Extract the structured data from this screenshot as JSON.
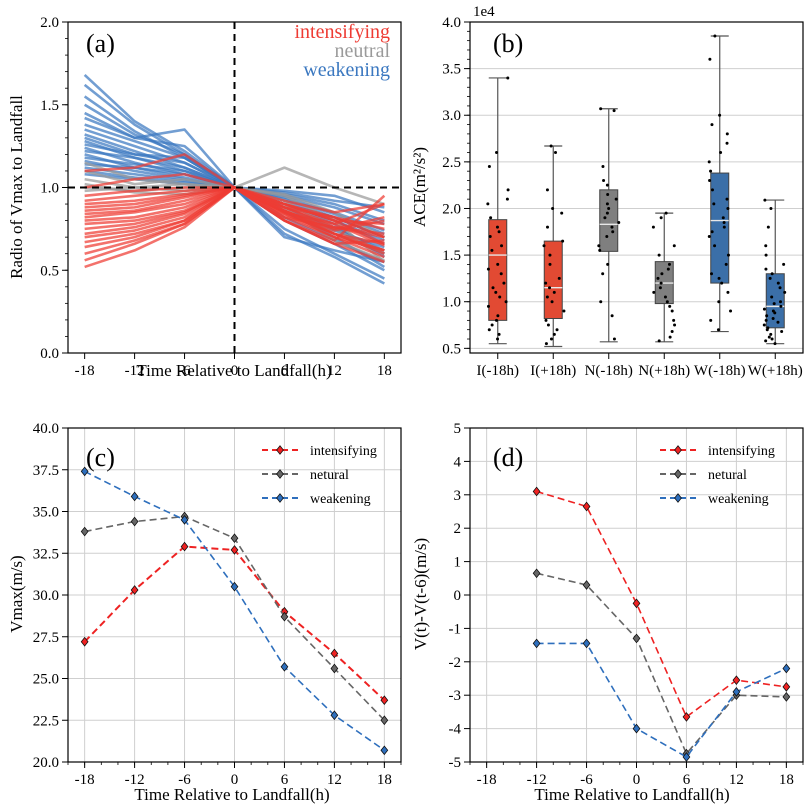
{
  "chart_data": [
    {
      "id": "a",
      "type": "line",
      "panel_label": "(a)",
      "xlabel": "Time Relative to Landfall(h)",
      "ylabel": "Radio of Vmax to Landfall",
      "x": [
        -18,
        -12,
        -6,
        0,
        6,
        12,
        18
      ],
      "xticks": [
        "-18",
        "-12",
        "-6",
        "0",
        "6",
        "12",
        "18"
      ],
      "ylim": [
        0.0,
        2.0
      ],
      "yticks": [
        "0.0",
        "0.5",
        "1.0",
        "1.5",
        "2.0"
      ],
      "reference_lines": {
        "x": 0,
        "y": 1.0
      },
      "legend": [
        {
          "label": "intensifying",
          "color": "#ee3b33"
        },
        {
          "label": "neutral",
          "color": "#9a9a9a"
        },
        {
          "label": "weakening",
          "color": "#3b78c0"
        }
      ],
      "series": [
        {
          "group": "weakening",
          "values": [
            1.68,
            1.4,
            1.22,
            1.0,
            0.72,
            0.58,
            0.42
          ]
        },
        {
          "group": "weakening",
          "values": [
            1.62,
            1.38,
            1.2,
            1.0,
            0.75,
            0.6,
            0.45
          ]
        },
        {
          "group": "weakening",
          "values": [
            1.55,
            1.34,
            1.18,
            1.0,
            0.8,
            0.66,
            0.5
          ]
        },
        {
          "group": "weakening",
          "values": [
            1.5,
            1.32,
            1.2,
            1.0,
            0.7,
            0.62,
            0.55
          ]
        },
        {
          "group": "weakening",
          "values": [
            1.45,
            1.3,
            1.25,
            1.0,
            0.85,
            0.72,
            0.6
          ]
        },
        {
          "group": "weakening",
          "values": [
            1.42,
            1.3,
            1.35,
            1.0,
            0.9,
            0.8,
            0.68
          ]
        },
        {
          "group": "weakening",
          "values": [
            1.38,
            1.28,
            1.18,
            1.0,
            0.88,
            0.75,
            0.62
          ]
        },
        {
          "group": "weakening",
          "values": [
            1.35,
            1.25,
            1.15,
            1.0,
            0.92,
            0.82,
            0.7
          ]
        },
        {
          "group": "weakening",
          "values": [
            1.32,
            1.22,
            1.12,
            1.0,
            0.95,
            0.88,
            0.78
          ]
        },
        {
          "group": "weakening",
          "values": [
            1.3,
            1.2,
            1.18,
            1.0,
            0.9,
            0.78,
            0.58
          ]
        },
        {
          "group": "weakening",
          "values": [
            1.28,
            1.18,
            1.1,
            1.0,
            0.98,
            0.95,
            0.85
          ]
        },
        {
          "group": "weakening",
          "values": [
            1.26,
            1.2,
            1.15,
            1.0,
            0.86,
            0.7,
            0.52
          ]
        },
        {
          "group": "weakening",
          "values": [
            1.24,
            1.15,
            1.08,
            1.0,
            0.94,
            0.85,
            0.74
          ]
        },
        {
          "group": "weakening",
          "values": [
            1.22,
            1.18,
            1.12,
            1.0,
            0.82,
            0.68,
            0.55
          ]
        },
        {
          "group": "weakening",
          "values": [
            1.2,
            1.12,
            1.06,
            1.0,
            0.9,
            0.8,
            0.66
          ]
        },
        {
          "group": "weakening",
          "values": [
            1.18,
            1.14,
            1.1,
            1.0,
            0.96,
            0.9,
            0.8
          ]
        },
        {
          "group": "weakening",
          "values": [
            1.16,
            1.1,
            1.05,
            1.0,
            0.88,
            0.76,
            0.6
          ]
        },
        {
          "group": "weakening",
          "values": [
            1.14,
            1.12,
            1.08,
            1.0,
            0.93,
            0.84,
            0.72
          ]
        },
        {
          "group": "weakening",
          "values": [
            1.12,
            1.08,
            1.04,
            1.0,
            0.97,
            0.92,
            0.88
          ]
        },
        {
          "group": "weakening",
          "values": [
            1.1,
            1.06,
            1.03,
            1.0,
            0.9,
            0.82,
            0.7
          ]
        },
        {
          "group": "weakening",
          "values": [
            1.08,
            1.05,
            1.02,
            1.0,
            0.86,
            0.74,
            0.64
          ]
        },
        {
          "group": "neutral",
          "values": [
            1.15,
            1.05,
            1.02,
            1.0,
            0.95,
            0.8,
            0.55
          ]
        },
        {
          "group": "neutral",
          "values": [
            1.1,
            1.02,
            1.05,
            1.0,
            0.9,
            0.72,
            0.62
          ]
        },
        {
          "group": "neutral",
          "values": [
            1.05,
            1.0,
            0.98,
            1.0,
            1.12,
            1.0,
            0.9
          ]
        },
        {
          "group": "neutral",
          "values": [
            1.0,
            0.98,
            1.0,
            1.0,
            0.92,
            0.75,
            0.6
          ]
        },
        {
          "group": "neutral",
          "values": [
            0.98,
            1.0,
            1.02,
            1.0,
            0.88,
            0.68,
            0.56
          ]
        },
        {
          "group": "neutral",
          "values": [
            1.02,
            0.97,
            0.96,
            1.0,
            0.96,
            0.85,
            0.7
          ]
        },
        {
          "group": "intensifying",
          "values": [
            1.1,
            1.12,
            1.2,
            1.0,
            0.8,
            0.66,
            0.55
          ]
        },
        {
          "group": "intensifying",
          "values": [
            1.0,
            1.05,
            1.08,
            1.0,
            0.85,
            0.72,
            0.6
          ]
        },
        {
          "group": "intensifying",
          "values": [
            0.95,
            0.98,
            1.0,
            1.0,
            0.88,
            0.78,
            0.65
          ]
        },
        {
          "group": "intensifying",
          "values": [
            0.92,
            0.95,
            0.98,
            1.0,
            0.9,
            0.82,
            0.7
          ]
        },
        {
          "group": "intensifying",
          "values": [
            0.9,
            0.92,
            0.96,
            1.0,
            0.86,
            0.75,
            0.82
          ]
        },
        {
          "group": "intensifying",
          "values": [
            0.88,
            0.9,
            0.95,
            1.0,
            0.92,
            0.85,
            0.9
          ]
        },
        {
          "group": "intensifying",
          "values": [
            0.86,
            0.88,
            0.94,
            1.0,
            0.84,
            0.7,
            0.62
          ]
        },
        {
          "group": "intensifying",
          "values": [
            0.84,
            0.86,
            0.92,
            1.0,
            0.8,
            0.68,
            0.95
          ]
        },
        {
          "group": "intensifying",
          "values": [
            0.82,
            0.85,
            0.9,
            1.0,
            0.88,
            0.76,
            0.72
          ]
        },
        {
          "group": "intensifying",
          "values": [
            0.8,
            0.82,
            0.88,
            1.0,
            0.9,
            0.8,
            0.66
          ]
        },
        {
          "group": "intensifying",
          "values": [
            0.78,
            0.8,
            0.86,
            1.0,
            0.85,
            0.78,
            0.9
          ]
        },
        {
          "group": "intensifying",
          "values": [
            0.75,
            0.78,
            0.85,
            1.0,
            0.82,
            0.7,
            0.58
          ]
        },
        {
          "group": "intensifying",
          "values": [
            0.72,
            0.76,
            0.84,
            1.0,
            0.88,
            0.82,
            0.75
          ]
        },
        {
          "group": "intensifying",
          "values": [
            0.7,
            0.74,
            0.82,
            1.0,
            0.8,
            0.66,
            0.68
          ]
        },
        {
          "group": "intensifying",
          "values": [
            0.67,
            0.72,
            0.8,
            1.0,
            0.86,
            0.74,
            0.8
          ]
        },
        {
          "group": "intensifying",
          "values": [
            0.64,
            0.7,
            0.8,
            1.0,
            0.84,
            0.72,
            0.62
          ]
        },
        {
          "group": "intensifying",
          "values": [
            0.6,
            0.68,
            0.78,
            1.0,
            0.82,
            0.76,
            0.7
          ]
        },
        {
          "group": "intensifying",
          "values": [
            0.56,
            0.66,
            0.78,
            1.0,
            0.9,
            0.8,
            0.78
          ]
        },
        {
          "group": "intensifying",
          "values": [
            0.52,
            0.62,
            0.76,
            1.0,
            0.86,
            0.72,
            0.66
          ]
        }
      ]
    },
    {
      "id": "b",
      "type": "box",
      "panel_label": "(b)",
      "offset_label": "1e4",
      "ylabel": "ACE(m²/s²)",
      "ylim": [
        0.45,
        4.0
      ],
      "yticks": [
        "0.5",
        "1.0",
        "1.5",
        "2.0",
        "2.5",
        "3.0",
        "3.5",
        "4.0"
      ],
      "categories": [
        "I(-18h)",
        "I(+18h)",
        "N(-18h)",
        "N(+18h)",
        "W(-18h)",
        "W(+18h)"
      ],
      "colors": [
        "#e24a33",
        "#e24a33",
        "#7f7f7f",
        "#7f7f7f",
        "#3b6fa8",
        "#3b6fa8"
      ],
      "boxes": [
        {
          "whislo": 0.55,
          "q1": 0.8,
          "med": 1.5,
          "q3": 1.88,
          "whishi": 3.4,
          "points": [
            0.6,
            0.65,
            0.7,
            0.75,
            0.8,
            0.85,
            0.95,
            1.0,
            1.05,
            1.1,
            1.15,
            1.2,
            1.3,
            1.35,
            1.4,
            1.55,
            1.6,
            1.7,
            1.75,
            1.8,
            1.9,
            2.05,
            2.1,
            2.2,
            2.45,
            2.6,
            3.4
          ]
        },
        {
          "whislo": 0.52,
          "q1": 0.82,
          "med": 1.15,
          "q3": 1.65,
          "whishi": 2.67,
          "points": [
            0.55,
            0.6,
            0.65,
            0.7,
            0.75,
            0.8,
            0.9,
            1.0,
            1.05,
            1.1,
            1.15,
            1.2,
            1.25,
            1.4,
            1.5,
            1.6,
            1.65,
            1.8,
            1.95,
            2.0,
            2.2,
            2.6,
            2.67
          ]
        },
        {
          "whislo": 0.57,
          "q1": 1.54,
          "med": 1.83,
          "q3": 2.2,
          "whishi": 3.07,
          "points": [
            0.6,
            0.85,
            1.0,
            1.3,
            1.4,
            1.55,
            1.6,
            1.7,
            1.75,
            1.8,
            1.85,
            1.9,
            1.95,
            2.0,
            2.05,
            2.1,
            2.15,
            2.25,
            2.3,
            2.45,
            3.05,
            3.07
          ]
        },
        {
          "whislo": 0.57,
          "q1": 0.98,
          "med": 1.2,
          "q3": 1.43,
          "whishi": 1.95,
          "points": [
            0.58,
            0.62,
            0.68,
            0.75,
            0.8,
            0.9,
            0.95,
            1.0,
            1.05,
            1.1,
            1.15,
            1.2,
            1.25,
            1.3,
            1.35,
            1.4,
            1.5,
            1.6,
            1.8,
            1.9,
            1.95
          ]
        },
        {
          "whislo": 0.68,
          "q1": 1.2,
          "med": 1.87,
          "q3": 2.38,
          "whishi": 3.85,
          "points": [
            0.7,
            0.8,
            0.9,
            1.0,
            1.1,
            1.2,
            1.25,
            1.3,
            1.4,
            1.5,
            1.6,
            1.7,
            1.75,
            1.8,
            1.85,
            1.9,
            2.0,
            2.05,
            2.1,
            2.2,
            2.3,
            2.4,
            2.5,
            2.6,
            2.7,
            2.8,
            2.9,
            3.0,
            3.6,
            3.85
          ]
        },
        {
          "whislo": 0.55,
          "q1": 0.72,
          "med": 0.95,
          "q3": 1.3,
          "whishi": 2.09,
          "points": [
            0.55,
            0.58,
            0.6,
            0.62,
            0.65,
            0.68,
            0.7,
            0.72,
            0.75,
            0.78,
            0.8,
            0.82,
            0.85,
            0.88,
            0.9,
            0.92,
            0.95,
            0.98,
            1.0,
            1.05,
            1.1,
            1.15,
            1.2,
            1.25,
            1.3,
            1.35,
            1.4,
            1.5,
            1.6,
            1.8,
            2.0,
            2.09
          ]
        }
      ]
    },
    {
      "id": "c",
      "type": "line",
      "panel_label": "(c)",
      "xlabel": "Time Relative to Landfall(h)",
      "ylabel": "Vmax(m/s)",
      "x": [
        -18,
        -12,
        -6,
        0,
        6,
        12,
        18
      ],
      "xticks": [
        "-18",
        "-12",
        "-6",
        "0",
        "6",
        "12",
        "18"
      ],
      "ylim": [
        20.0,
        40.0
      ],
      "yticks": [
        "20.0",
        "22.5",
        "25.0",
        "27.5",
        "30.0",
        "32.5",
        "35.0",
        "37.5",
        "40.0"
      ],
      "legend_position": "top-right",
      "series": [
        {
          "name": "intensifying",
          "color": "#ee2222",
          "values": [
            27.2,
            30.3,
            32.9,
            32.7,
            29.0,
            26.5,
            23.7
          ]
        },
        {
          "name": "netural",
          "color": "#666666",
          "values": [
            33.8,
            34.4,
            34.7,
            33.4,
            28.7,
            25.6,
            22.5
          ]
        },
        {
          "name": "weakening",
          "color": "#2e6fbd",
          "values": [
            37.4,
            35.9,
            34.5,
            30.5,
            25.7,
            22.8,
            20.7
          ]
        }
      ]
    },
    {
      "id": "d",
      "type": "line",
      "panel_label": "(d)",
      "xlabel": "Time Relative to Landfall(h)",
      "ylabel": "V(t)-V(t-6)(m/s)",
      "x": [
        -12,
        -6,
        0,
        6,
        12,
        18
      ],
      "xlim": [
        -18,
        18
      ],
      "xticks": [
        "-18",
        "-12",
        "-6",
        "0",
        "6",
        "12",
        "18"
      ],
      "ylim": [
        -5,
        5
      ],
      "yticks": [
        "-5",
        "-4",
        "-3",
        "-2",
        "-1",
        "0",
        "1",
        "2",
        "3",
        "4",
        "5"
      ],
      "legend_position": "top-right",
      "series": [
        {
          "name": "intensifying",
          "color": "#ee2222",
          "values": [
            3.1,
            2.65,
            -0.25,
            -3.65,
            -2.55,
            -2.75
          ]
        },
        {
          "name": "netural",
          "color": "#666666",
          "values": [
            0.65,
            0.3,
            -1.3,
            -4.75,
            -3.0,
            -3.05
          ]
        },
        {
          "name": "weakening",
          "color": "#2e6fbd",
          "values": [
            -1.45,
            -1.45,
            -4.0,
            -4.85,
            -2.9,
            -2.2
          ]
        }
      ]
    }
  ]
}
